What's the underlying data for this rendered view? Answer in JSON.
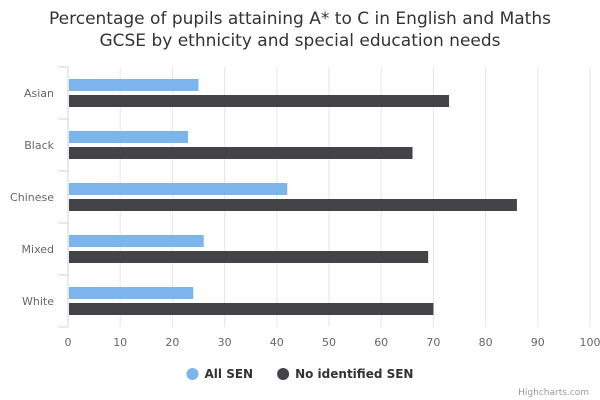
{
  "chart_data": {
    "type": "bar",
    "orientation": "horizontal",
    "title_lines": [
      "Percentage of pupils attaining A* to C in English and Maths",
      "GCSE by ethnicity and special education needs"
    ],
    "categories": [
      "Asian",
      "Black",
      "Chinese",
      "Mixed",
      "White"
    ],
    "series": [
      {
        "name": "All SEN",
        "color": "#7cb5ec",
        "values": [
          25,
          23,
          42,
          26,
          24
        ]
      },
      {
        "name": "No identified SEN",
        "color": "#434348",
        "values": [
          73,
          66,
          86,
          69,
          70
        ]
      }
    ],
    "xlim": [
      0,
      100
    ],
    "ticks": [
      0,
      10,
      20,
      30,
      40,
      50,
      60,
      70,
      80,
      90,
      100
    ],
    "grid": true,
    "legend": "bottom-center",
    "credits": "Highcharts.com"
  }
}
